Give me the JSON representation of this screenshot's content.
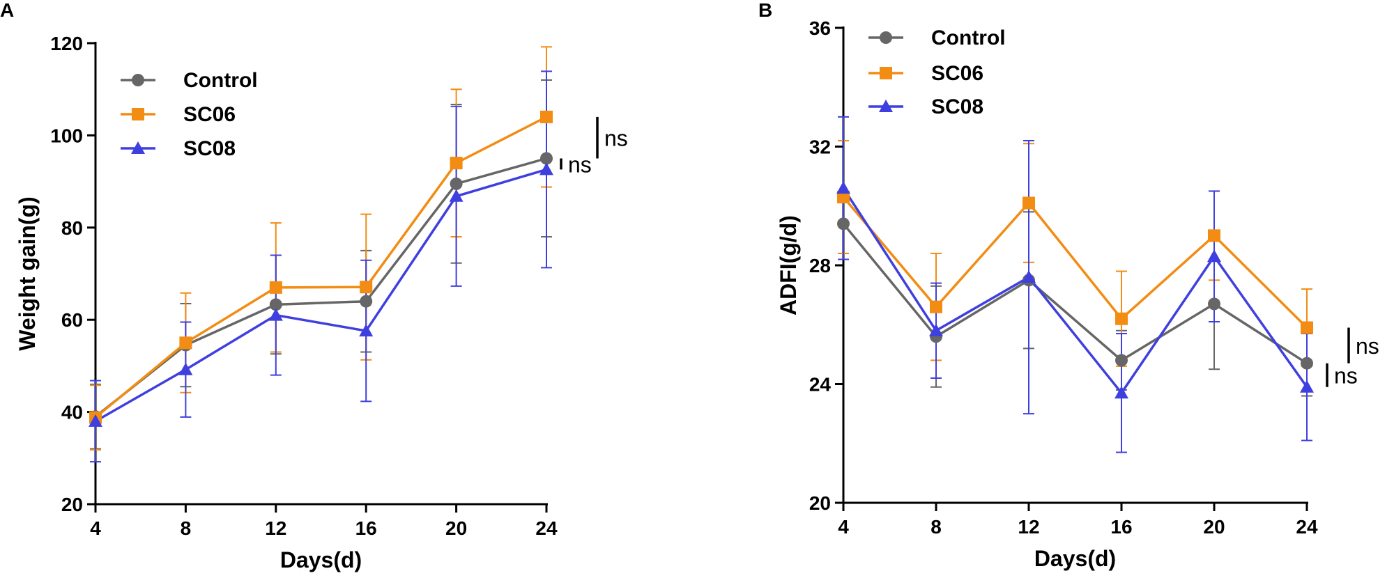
{
  "colors": {
    "control": "#666666",
    "sc06": "#f28c13",
    "sc08": "#3f3fe0",
    "axis": "#000000"
  },
  "chart_data": [
    {
      "panel": "A",
      "type": "line",
      "xlabel": "Days(d)",
      "ylabel": "Weight gain(g)",
      "x": [
        4,
        8,
        12,
        16,
        20,
        24
      ],
      "x_ticks": [
        4,
        8,
        12,
        16,
        20,
        24
      ],
      "ylim": [
        20,
        120
      ],
      "y_ticks": [
        20,
        40,
        60,
        80,
        100,
        120
      ],
      "legend_position": "top-left",
      "series": [
        {
          "name": "Control",
          "color": "#666666",
          "marker": "circle",
          "values": [
            39.0,
            54.5,
            63.3,
            64.0,
            89.5,
            95.0
          ],
          "errors": [
            7.0,
            9.0,
            10.7,
            11.0,
            17.2,
            17.0
          ]
        },
        {
          "name": "SC06",
          "color": "#f28c13",
          "marker": "square",
          "values": [
            38.8,
            55.0,
            67.0,
            67.1,
            94.0,
            104.0
          ],
          "errors": [
            7.0,
            10.8,
            14.0,
            15.8,
            16.0,
            15.2
          ]
        },
        {
          "name": "SC08",
          "color": "#3f3fe0",
          "marker": "triangle",
          "values": [
            38.0,
            49.2,
            61.0,
            57.6,
            86.8,
            92.6
          ],
          "errors": [
            8.8,
            10.3,
            13.0,
            15.3,
            19.5,
            21.3
          ]
        }
      ],
      "significance": [
        {
          "label": "ns",
          "span": [
            95.0,
            104.0
          ],
          "offset": "outer"
        },
        {
          "label": "ns",
          "span": [
            92.6,
            95.0
          ],
          "offset": "inner"
        }
      ]
    },
    {
      "panel": "B",
      "type": "line",
      "xlabel": "Days(d)",
      "ylabel": "ADFI(g/d)",
      "x": [
        4,
        8,
        12,
        16,
        20,
        24
      ],
      "x_ticks": [
        4,
        8,
        12,
        16,
        20,
        24
      ],
      "ylim": [
        20,
        36
      ],
      "y_ticks": [
        20,
        24,
        28,
        32,
        36
      ],
      "legend_position": "top-left",
      "series": [
        {
          "name": "Control",
          "color": "#666666",
          "marker": "circle",
          "values": [
            29.4,
            25.6,
            27.5,
            24.8,
            26.7,
            24.7
          ],
          "errors": [
            1.0,
            1.7,
            2.3,
            1.0,
            2.2,
            1.1
          ]
        },
        {
          "name": "SC06",
          "color": "#f28c13",
          "marker": "square",
          "values": [
            30.3,
            26.6,
            30.1,
            26.2,
            29.0,
            25.9
          ],
          "errors": [
            1.9,
            1.8,
            2.0,
            1.6,
            1.5,
            1.3
          ]
        },
        {
          "name": "SC08",
          "color": "#3f3fe0",
          "marker": "triangle",
          "values": [
            30.6,
            25.8,
            27.6,
            23.7,
            28.3,
            23.9
          ],
          "errors": [
            2.4,
            1.6,
            4.6,
            2.0,
            2.2,
            1.8
          ]
        }
      ],
      "significance": [
        {
          "label": "ns",
          "span": [
            24.7,
            25.9
          ],
          "offset": "outer"
        },
        {
          "label": "ns",
          "span": [
            23.9,
            24.7
          ],
          "offset": "inner"
        }
      ]
    }
  ]
}
